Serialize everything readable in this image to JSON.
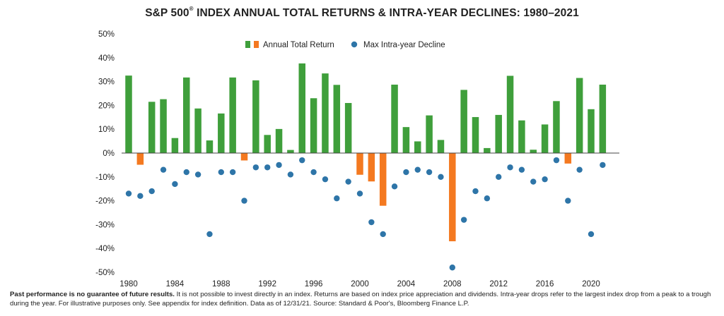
{
  "title": {
    "main": "S&P 500",
    "mark": "®",
    "rest": " INDEX ANNUAL TOTAL RETURNS & INTRA-YEAR DECLINES: 1980–2021"
  },
  "footnote": {
    "bold": "Past performance is no guarantee of future results.",
    "text": " It is not possible to invest directly in an index. Returns are based on index price appreciation and dividends. Intra-year drops refer to the largest index drop from a peak to a trough during the year. For illustrative purposes only. See appendix for index definition. Data as of 12/31/21. Source: Standard & Poor's, Bloomberg Finance L.P."
  },
  "chart_data": {
    "type": "bar",
    "ylim": [
      -50,
      50
    ],
    "y_ticks": [
      50,
      40,
      30,
      20,
      10,
      0,
      -10,
      -20,
      -30,
      -40,
      -50
    ],
    "y_tick_labels": [
      "50%",
      "40%",
      "30%",
      "20%",
      "10%",
      "0%",
      "-10%",
      "-20%",
      "-30%",
      "-40%",
      "-50%"
    ],
    "x_tick_labels": [
      "1980",
      "1984",
      "1988",
      "1992",
      "1996",
      "2000",
      "2004",
      "2008",
      "2012",
      "2016",
      "2020"
    ],
    "legend_placement": "top-center",
    "colors": {
      "positive": "#3f9f3b",
      "negative": "#f47920",
      "decline": "#2e75a8",
      "axis": "#444444"
    },
    "x": [
      1980,
      1981,
      1982,
      1983,
      1984,
      1985,
      1986,
      1987,
      1988,
      1989,
      1990,
      1991,
      1992,
      1993,
      1994,
      1995,
      1996,
      1997,
      1998,
      1999,
      2000,
      2001,
      2002,
      2003,
      2004,
      2005,
      2006,
      2007,
      2008,
      2009,
      2010,
      2011,
      2012,
      2013,
      2014,
      2015,
      2016,
      2017,
      2018,
      2019,
      2020,
      2021
    ],
    "series": [
      {
        "name": "Annual Total Return",
        "kind": "bar",
        "values": [
          32.5,
          -4.9,
          21.5,
          22.6,
          6.3,
          31.7,
          18.7,
          5.3,
          16.6,
          31.7,
          -3.1,
          30.5,
          7.6,
          10.1,
          1.3,
          37.6,
          23.0,
          33.4,
          28.6,
          21.0,
          -9.1,
          -11.9,
          -22.1,
          28.7,
          10.9,
          4.9,
          15.8,
          5.5,
          -37.0,
          26.5,
          15.1,
          2.1,
          16.0,
          32.4,
          13.7,
          1.4,
          12.0,
          21.8,
          -4.4,
          31.5,
          18.4,
          28.7
        ]
      },
      {
        "name": "Max Intra-year Decline",
        "kind": "scatter",
        "values": [
          -17,
          -18,
          -16,
          -7,
          -13,
          -8,
          -9,
          -34,
          -8,
          -8,
          -20,
          -6,
          -6,
          -5,
          -9,
          -3,
          -8,
          -11,
          -19,
          -12,
          -17,
          -29,
          -34,
          -14,
          -8,
          -7,
          -8,
          -10,
          -48,
          -28,
          -16,
          -19,
          -10,
          -6,
          -7,
          -12,
          -11,
          -3,
          -20,
          -7,
          -34,
          -5
        ]
      }
    ]
  }
}
